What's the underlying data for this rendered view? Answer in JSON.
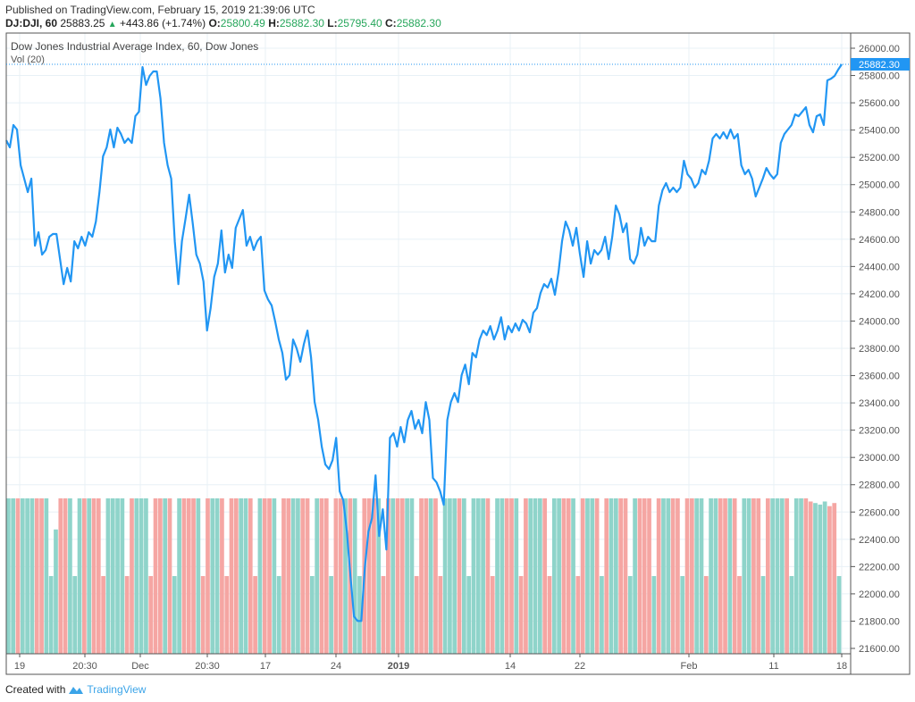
{
  "header": {
    "published": "Published on TradingView.com, February 15, 2019 21:39:06 UTC",
    "symbol": "DJ:DJI, 60",
    "last": "25883.25",
    "change": "+443.86 (+1.74%)",
    "o_label": "O:",
    "o": "25800.49",
    "h_label": "H:",
    "h": "25882.30",
    "l_label": "L:",
    "l": "25795.40",
    "c_label": "C:",
    "c": "25882.30"
  },
  "footer": {
    "created": "Created with",
    "brand": "TradingView"
  },
  "chart_data": {
    "type": "line",
    "title": "Dow Jones Industrial Average Index, 60, Dow Jones",
    "volume_label": "Vol (20)",
    "ylim": [
      21600,
      26000
    ],
    "y_ticks": [
      "26000.00",
      "25800.00",
      "25600.00",
      "25400.00",
      "25200.00",
      "25000.00",
      "24800.00",
      "24600.00",
      "24400.00",
      "24200.00",
      "24000.00",
      "23800.00",
      "23600.00",
      "23400.00",
      "23200.00",
      "23000.00",
      "22800.00",
      "22600.00",
      "22400.00",
      "22200.00",
      "22000.00",
      "21800.00",
      "21600.00"
    ],
    "x_ticks": [
      "19",
      "20:30",
      "Dec",
      "20:30",
      "17",
      "24",
      "2019",
      "14",
      "22",
      "Feb",
      "11",
      "18"
    ],
    "last_price": 25882.3,
    "last_price_label": "25882.30",
    "grid": true,
    "colors": {
      "line": "#2196f3",
      "vol_up": "#8fd4ca",
      "vol_down": "#f5a6a3",
      "last_label_bg": "#2196f3"
    },
    "values": [
      25325,
      25273,
      25437,
      25404,
      25142,
      25044,
      24945,
      25044,
      24552,
      24651,
      24487,
      24520,
      24618,
      24638,
      24638,
      24454,
      24271,
      24389,
      24290,
      24585,
      24533,
      24618,
      24552,
      24651,
      24618,
      24729,
      24945,
      25207,
      25273,
      25404,
      25273,
      25417,
      25371,
      25306,
      25338,
      25306,
      25502,
      25535,
      25862,
      25731,
      25797,
      25830,
      25830,
      25633,
      25306,
      25142,
      25044,
      24585,
      24271,
      24585,
      24749,
      24926,
      24716,
      24487,
      24421,
      24290,
      23930,
      24094,
      24323,
      24421,
      24664,
      24356,
      24487,
      24389,
      24683,
      24749,
      24814,
      24552,
      24618,
      24520,
      24585,
      24618,
      24225,
      24159,
      24114,
      23996,
      23865,
      23766,
      23570,
      23603,
      23865,
      23799,
      23701,
      23832,
      23930,
      23734,
      23406,
      23275,
      23079,
      22948,
      22915,
      22980,
      23144,
      22751,
      22686,
      22456,
      22129,
      21834,
      21801,
      21801,
      22194,
      22456,
      22555,
      22869,
      22424,
      22620,
      22325,
      23144,
      23177,
      23079,
      23223,
      23111,
      23275,
      23341,
      23210,
      23275,
      23177,
      23406,
      23275,
      22849,
      22817,
      22751,
      22653,
      23275,
      23406,
      23472,
      23406,
      23603,
      23681,
      23537,
      23766,
      23734,
      23865,
      23930,
      23897,
      23963,
      23865,
      23930,
      24028,
      23865,
      23963,
      23917,
      23983,
      23930,
      24009,
      23983,
      23917,
      24061,
      24094,
      24205,
      24271,
      24245,
      24310,
      24192,
      24356,
      24585,
      24729,
      24664,
      24552,
      24683,
      24487,
      24323,
      24585,
      24421,
      24520,
      24487,
      24520,
      24618,
      24454,
      24618,
      24847,
      24782,
      24651,
      24716,
      24454,
      24421,
      24487,
      24683,
      24552,
      24618,
      24585,
      24585,
      24847,
      24959,
      25011,
      24945,
      24978,
      24945,
      24978,
      25175,
      25076,
      25044,
      24978,
      25011,
      25109,
      25076,
      25175,
      25338,
      25371,
      25338,
      25384,
      25338,
      25404,
      25338,
      25371,
      25142,
      25076,
      25109,
      25044,
      24913,
      24978,
      25044,
      25122,
      25076,
      25044,
      25076,
      25306,
      25371,
      25404,
      25437,
      25515,
      25502,
      25535,
      25568,
      25437,
      25384,
      25502,
      25515,
      25437,
      25764,
      25777,
      25797,
      25843,
      25882
    ],
    "volume": {
      "dir": "uuduuudduuudduuududdduuuudduuuddduduudddudduudddduuddudduudduudduuddudduduuddduddudduudddudduuuduuuuudduuddudduuudduuddudduududuudduuddduduuddudduuduuddudduuddudu",
      "values": [
        1,
        1,
        1,
        1,
        1,
        1,
        1,
        1,
        1,
        0.5,
        0.8,
        1,
        1,
        1,
        0.5,
        1,
        1,
        1,
        1,
        1,
        0.5,
        1,
        1,
        1,
        1,
        0.5,
        1,
        1,
        1,
        1,
        0.5,
        1,
        1,
        1,
        1,
        0.5,
        1,
        1,
        1,
        1,
        1,
        0.5,
        1,
        1,
        1,
        1,
        0.5,
        1,
        1,
        1,
        1,
        1,
        0.5,
        1,
        1,
        1,
        1,
        0.5,
        1,
        1,
        1,
        1,
        1,
        1,
        0.5,
        1,
        1,
        1,
        0.5,
        1,
        1,
        1,
        1,
        1,
        0.5,
        1,
        1,
        1,
        1,
        0.5,
        1,
        1,
        1,
        1,
        1,
        1,
        0.5,
        1,
        1,
        1,
        1,
        0.5,
        1,
        1,
        1,
        1,
        1,
        0.5,
        1,
        1,
        1,
        1,
        0.5,
        1,
        1,
        1,
        1,
        1,
        0.5,
        1,
        1,
        1,
        1,
        1,
        0.5,
        1,
        1,
        1,
        1,
        1,
        0.5,
        1,
        1,
        1,
        1,
        0.5,
        1,
        1,
        1,
        1,
        1,
        0.5,
        1,
        1,
        1,
        1,
        0.5,
        1,
        1,
        1,
        1,
        1,
        0.5,
        1,
        1,
        1,
        1,
        0.5,
        1,
        1,
        1,
        1,
        1,
        1,
        0.5,
        1,
        1,
        1,
        1,
        0.5,
        1,
        1,
        1,
        1,
        1,
        0.5,
        1,
        1,
        1,
        0.98,
        0.97,
        0.96,
        0.98,
        0.95,
        0.97,
        0.5
      ]
    }
  }
}
